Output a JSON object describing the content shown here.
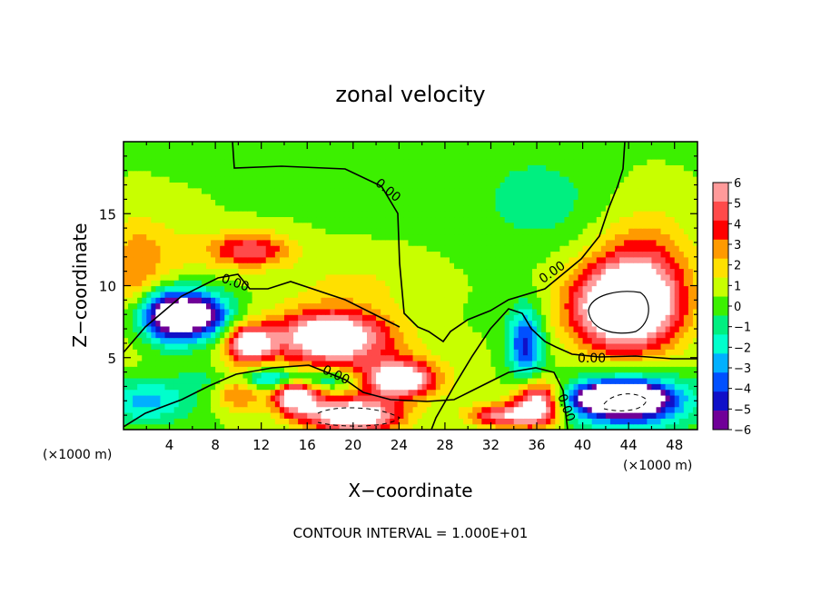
{
  "chart_data": {
    "type": "heatmap",
    "title": "zonal velocity",
    "xlabel": "X−coordinate",
    "ylabel": "Z−coordinate",
    "x_unit_left": "(×1000 m)",
    "x_unit_right": "(×1000 m)",
    "footer": "CONTOUR INTERVAL = 1.000E+01",
    "xlim": [
      0,
      50
    ],
    "ylim": [
      0,
      20
    ],
    "x_ticks": [
      "4",
      "8",
      "12",
      "16",
      "20",
      "24",
      "28",
      "32",
      "36",
      "40",
      "44",
      "48"
    ],
    "y_ticks": [
      "5",
      "10",
      "15"
    ],
    "colorbar": {
      "range": [
        -6,
        6
      ],
      "labels": [
        "6",
        "5",
        "4",
        "3",
        "2",
        "1",
        "0",
        "−1",
        "−2",
        "−3",
        "−4",
        "−5",
        "−6"
      ],
      "colors": [
        "#ff9a9a",
        "#ff4a4a",
        "#ff0000",
        "#ff9a00",
        "#ffe000",
        "#c8ff00",
        "#3cf000",
        "#00ef80",
        "#00ffcc",
        "#00b0ff",
        "#0050ff",
        "#1010c8",
        "#700098"
      ]
    },
    "contour_labels": [
      "0.00",
      "0.00",
      "0.00",
      "0.00",
      "0.00",
      "0.00"
    ],
    "blobs": [
      {
        "cx": 4,
        "cy": 8,
        "rx": 3.0,
        "ry": 1.8,
        "v": -8
      },
      {
        "cx": 7,
        "cy": 8,
        "rx": 2.5,
        "ry": 1.5,
        "v": -5
      },
      {
        "cx": 11,
        "cy": 12.5,
        "rx": 3.5,
        "ry": 1.2,
        "v": 4.5
      },
      {
        "cx": 18,
        "cy": 6.5,
        "rx": 5.0,
        "ry": 1.8,
        "v": 8
      },
      {
        "cx": 11,
        "cy": 6,
        "rx": 2.0,
        "ry": 1.2,
        "v": 7
      },
      {
        "cx": 24,
        "cy": 3.5,
        "rx": 3.0,
        "ry": 1.2,
        "v": 7
      },
      {
        "cx": 15,
        "cy": 2.5,
        "rx": 2.0,
        "ry": 1.3,
        "v": 8
      },
      {
        "cx": 20,
        "cy": 1,
        "rx": 4.0,
        "ry": 1.2,
        "v": 8
      },
      {
        "cx": 14,
        "cy": 3.5,
        "rx": 6.0,
        "ry": 0.8,
        "v": -5
      },
      {
        "cx": 10,
        "cy": 3,
        "rx": 2.0,
        "ry": 1.5,
        "v": 4
      },
      {
        "cx": 2,
        "cy": 2,
        "rx": 4.0,
        "ry": 1.5,
        "v": -3
      },
      {
        "cx": 33,
        "cy": 1,
        "rx": 3.0,
        "ry": 0.8,
        "v": 5
      },
      {
        "cx": 35,
        "cy": 6,
        "rx": 1.5,
        "ry": 2.5,
        "v": -5
      },
      {
        "cx": 36,
        "cy": 1.8,
        "rx": 2.0,
        "ry": 1.5,
        "v": 7
      },
      {
        "cx": 43.5,
        "cy": 8.5,
        "rx": 4.5,
        "ry": 3.0,
        "v": 9
      },
      {
        "cx": 45.5,
        "cy": 11,
        "rx": 4.0,
        "ry": 4.0,
        "v": 3
      },
      {
        "cx": 44,
        "cy": 2,
        "rx": 5.0,
        "ry": 1.8,
        "v": -7
      },
      {
        "cx": 43,
        "cy": 2.2,
        "rx": 3.0,
        "ry": 0.8,
        "v": -12
      },
      {
        "cx": 36,
        "cy": 16,
        "rx": 5.0,
        "ry": 3.0,
        "v": -1.5
      },
      {
        "cx": 22,
        "cy": 4,
        "rx": 7.0,
        "ry": 2.0,
        "v": 1.5
      },
      {
        "cx": 3,
        "cy": 12,
        "rx": 4.0,
        "ry": 3.0,
        "v": 1.5
      },
      {
        "cx": 20,
        "cy": 10,
        "rx": 6.0,
        "ry": 2.0,
        "v": 1.2
      },
      {
        "cx": 1,
        "cy": 10,
        "rx": 2.0,
        "ry": 4.0,
        "v": 2
      }
    ]
  }
}
